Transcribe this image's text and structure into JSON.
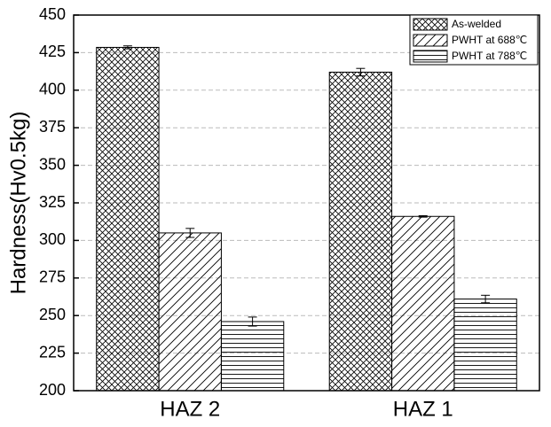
{
  "chart_data": {
    "type": "bar",
    "y_label": "Hardness(Hv0.5kg)",
    "categories": [
      "HAZ 2",
      "HAZ 1"
    ],
    "series": [
      {
        "name": "As-welded",
        "color": "#000000",
        "pattern": "crosshatch",
        "values": [
          428.5,
          412
        ],
        "errors": [
          1,
          2.5
        ]
      },
      {
        "name": "PWHT at 688℃",
        "color": "#000000",
        "pattern": "diagonal",
        "values": [
          305,
          316
        ],
        "errors": [
          3,
          0.5
        ]
      },
      {
        "name": "PWHT at 788℃",
        "color": "#000000",
        "pattern": "horizontal",
        "values": [
          246,
          261
        ],
        "errors": [
          3,
          2.5
        ]
      }
    ],
    "ylim": [
      200,
      450
    ],
    "yticks": [
      200,
      225,
      250,
      275,
      300,
      325,
      350,
      375,
      400,
      425,
      450
    ],
    "grid": true,
    "legend": "upper-right"
  }
}
